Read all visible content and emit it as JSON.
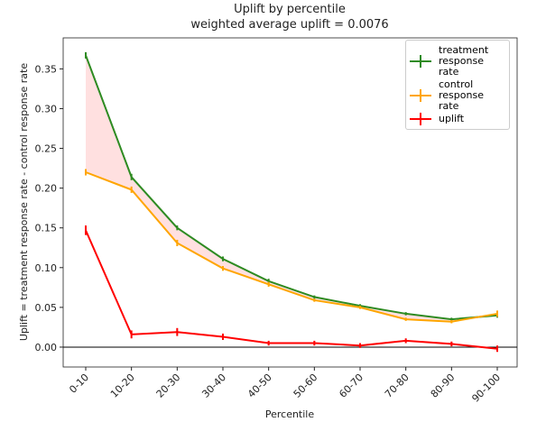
{
  "chart_data": {
    "type": "line",
    "title": "Uplift by percentile",
    "subtitle": "weighted average uplift = 0.0076",
    "x_label": "Percentile",
    "y_label": "Uplift = treatment response rate - control response rate",
    "categories": [
      "0-10",
      "10-20",
      "20-30",
      "30-40",
      "40-50",
      "50-60",
      "60-70",
      "70-80",
      "80-90",
      "90-100"
    ],
    "series": [
      {
        "name": "treatment response rate",
        "color": "#2e8b22",
        "values": [
          0.367,
          0.214,
          0.15,
          0.111,
          0.083,
          0.063,
          0.052,
          0.042,
          0.035,
          0.04
        ],
        "errors": [
          0.004,
          0.004,
          0.003,
          0.003,
          0.003,
          0.002,
          0.002,
          0.002,
          0.002,
          0.003
        ]
      },
      {
        "name": "control response rate",
        "color": "#ffa500",
        "values": [
          0.22,
          0.198,
          0.131,
          0.099,
          0.079,
          0.059,
          0.05,
          0.035,
          0.032,
          0.042
        ],
        "errors": [
          0.004,
          0.004,
          0.004,
          0.003,
          0.003,
          0.002,
          0.002,
          0.002,
          0.002,
          0.004
        ]
      },
      {
        "name": "uplift",
        "color": "#ff0000",
        "values": [
          0.147,
          0.016,
          0.019,
          0.013,
          0.005,
          0.005,
          0.002,
          0.008,
          0.004,
          -0.002
        ],
        "errors": [
          0.006,
          0.005,
          0.005,
          0.004,
          0.003,
          0.003,
          0.003,
          0.003,
          0.003,
          0.004
        ]
      }
    ],
    "fill_color": "#ffcccc",
    "hline": 0,
    "ylim": [
      -0.025,
      0.389
    ],
    "yticks": [
      {
        "value": 0,
        "label": "0.00"
      },
      {
        "value": 0.05,
        "label": "0.05"
      },
      {
        "value": 0.1,
        "label": "0.10"
      },
      {
        "value": 0.15,
        "label": "0.15"
      },
      {
        "value": 0.2,
        "label": "0.20"
      },
      {
        "value": 0.25,
        "label": "0.25"
      },
      {
        "value": 0.3,
        "label": "0.30"
      },
      {
        "value": 0.35,
        "label": "0.35"
      }
    ],
    "legend": "upper right"
  }
}
